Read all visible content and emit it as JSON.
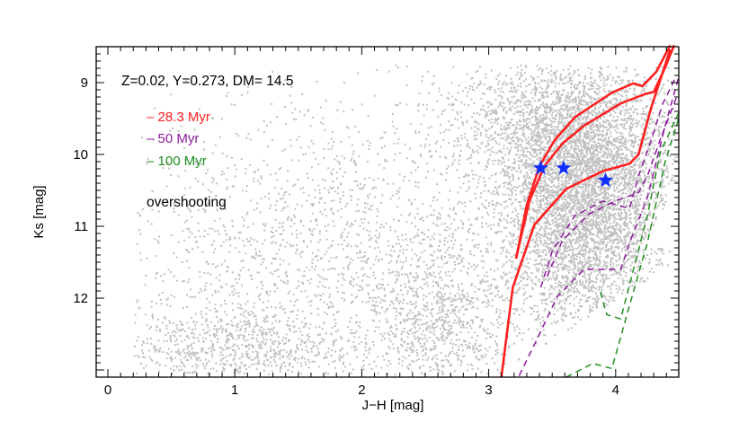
{
  "chart_data": {
    "type": "scatter",
    "title": "",
    "xlabel": "J−H [mag]",
    "ylabel": "Ks [mag]",
    "xlim": [
      -0.09,
      4.5
    ],
    "ylim": [
      13.1,
      8.5
    ],
    "y_inverted": true,
    "x_ticks": [
      "0",
      "1",
      "2",
      "3",
      "4"
    ],
    "x_tick_values": [
      0,
      1,
      2,
      3,
      4
    ],
    "y_ticks": [
      "9",
      "10",
      "11",
      "12"
    ],
    "y_tick_values": [
      9,
      10,
      11,
      12
    ],
    "grid": false,
    "annotations": {
      "params": "Z=0.02, Y=0.273,  DM= 14.5",
      "model": "overshooting"
    },
    "legend": {
      "placement": "top-left",
      "entries": [
        {
          "label": "– 28.3 Myr",
          "color": "#ff2020",
          "style": "solid"
        },
        {
          "label": "– 50 Myr",
          "color": "#8b1a9b",
          "style": "dashed"
        },
        {
          "label": "– 100 Myr",
          "color": "#1f8f1f",
          "style": "dashed"
        }
      ]
    },
    "point_color": "#c0c0c0",
    "point_clouds": [
      {
        "cx": 3.75,
        "cy": 10.6,
        "sx": 0.35,
        "sy": 0.9,
        "n": 5200
      },
      {
        "cx": 3.5,
        "cy": 9.6,
        "sx": 0.45,
        "sy": 0.45,
        "n": 1400
      },
      {
        "cx": 0.9,
        "cy": 12.7,
        "sx": 0.5,
        "sy": 0.35,
        "n": 900
      },
      {
        "cx": 1.7,
        "cy": 11.3,
        "sx": 0.8,
        "sy": 1.1,
        "n": 1800
      },
      {
        "cx": 2.6,
        "cy": 12.3,
        "sx": 0.3,
        "sy": 0.6,
        "n": 900
      }
    ],
    "isochrones": [
      {
        "name": "28.3 Myr",
        "color": "#ff2020",
        "style": "solid",
        "branches": [
          [
            [
              3.215,
              11.45
            ],
            [
              3.3,
              10.7
            ],
            [
              3.4,
              10.16
            ],
            [
              3.52,
              9.8
            ],
            [
              3.68,
              9.48
            ],
            [
              3.97,
              9.14
            ],
            [
              4.14,
              9.01
            ],
            [
              4.21,
              9.05
            ],
            [
              4.32,
              8.85
            ],
            [
              4.43,
              8.48
            ]
          ],
          [
            [
              3.215,
              11.45
            ],
            [
              3.32,
              10.65
            ],
            [
              3.44,
              10.16
            ],
            [
              3.58,
              9.85
            ],
            [
              3.75,
              9.6
            ],
            [
              4.04,
              9.29
            ],
            [
              4.23,
              9.16
            ],
            [
              4.3,
              9.13
            ],
            [
              4.39,
              8.79
            ],
            [
              4.46,
              8.48
            ]
          ],
          [
            [
              3.1,
              13.1
            ],
            [
              3.19,
              11.85
            ],
            [
              3.36,
              10.98
            ],
            [
              3.61,
              10.48
            ],
            [
              3.9,
              10.23
            ],
            [
              4.11,
              10.13
            ],
            [
              4.18,
              10.0
            ],
            [
              4.28,
              9.35
            ],
            [
              4.43,
              8.54
            ]
          ]
        ]
      },
      {
        "name": "50 Myr",
        "color": "#8b1a9b",
        "style": "dashed",
        "branches": [
          [
            [
              3.24,
              13.08
            ],
            [
              3.4,
              12.5
            ],
            [
              3.54,
              11.98
            ],
            [
              3.75,
              11.6
            ],
            [
              4.04,
              11.6
            ],
            [
              4.11,
              11.23
            ],
            [
              4.25,
              10.6
            ],
            [
              4.39,
              9.6
            ],
            [
              4.5,
              8.9
            ]
          ],
          [
            [
              3.41,
              11.85
            ],
            [
              3.5,
              11.35
            ],
            [
              3.68,
              10.85
            ],
            [
              3.9,
              10.65
            ],
            [
              4.11,
              10.75
            ],
            [
              4.18,
              10.3
            ],
            [
              4.28,
              9.8
            ],
            [
              4.37,
              9.3
            ],
            [
              4.48,
              8.9
            ]
          ],
          [
            [
              3.46,
              11.7
            ],
            [
              3.58,
              11.2
            ],
            [
              3.79,
              10.83
            ],
            [
              3.98,
              10.66
            ],
            [
              4.18,
              10.53
            ],
            [
              4.25,
              10.3
            ],
            [
              4.35,
              9.8
            ],
            [
              4.48,
              9.2
            ]
          ]
        ]
      },
      {
        "name": "100 Myr",
        "color": "#1f8f1f",
        "style": "dashed",
        "branches": [
          [
            [
              3.61,
              13.1
            ],
            [
              3.82,
              12.91
            ],
            [
              3.97,
              12.98
            ],
            [
              4.11,
              12.1
            ],
            [
              4.25,
              11.23
            ],
            [
              4.39,
              10.1
            ],
            [
              4.5,
              9.48
            ]
          ],
          [
            [
              3.88,
              11.91
            ],
            [
              3.93,
              12.23
            ],
            [
              4.04,
              12.29
            ],
            [
              4.14,
              11.6
            ],
            [
              4.25,
              10.85
            ],
            [
              4.35,
              9.98
            ],
            [
              4.5,
              9.41
            ]
          ]
        ]
      }
    ],
    "highlighted_stars": {
      "color": "#1030ff",
      "points": [
        [
          3.41,
          10.19
        ],
        [
          3.59,
          10.19
        ],
        [
          3.92,
          10.36
        ]
      ]
    }
  }
}
